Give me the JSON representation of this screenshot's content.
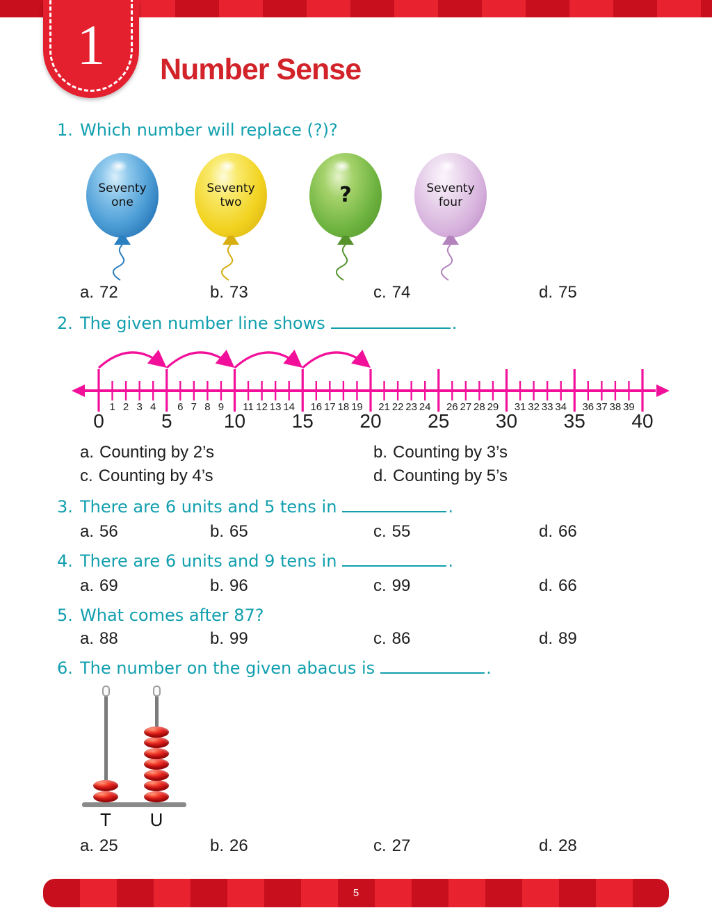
{
  "page": {
    "number": "5"
  },
  "chapter": {
    "number": "1",
    "title": "Number Sense"
  },
  "colors": {
    "stripe_dark": "#c80f1d",
    "stripe_bright": "#e8222e",
    "badge_red": "#e5202e",
    "title_red": "#d2232a",
    "question_teal": "#119fae",
    "number_line_pink": "#f2109b",
    "option_text": "#1d1d1d",
    "bead_red": "#e01f1f"
  },
  "questions": [
    {
      "number": "1.",
      "text": "Which number will replace (?)?",
      "blank_width": 0,
      "suffix": "",
      "options": [
        {
          "letter": "a.",
          "text": "72"
        },
        {
          "letter": "b.",
          "text": "73"
        },
        {
          "letter": "c.",
          "text": "74"
        },
        {
          "letter": "d.",
          "text": "75"
        }
      ]
    },
    {
      "number": "2.",
      "text": "The given number line shows",
      "blank_width": 172,
      "suffix": ".",
      "options": [
        {
          "letter": "a.",
          "text": "Counting by 2’s"
        },
        {
          "letter": "b.",
          "text": "Counting by 3’s"
        },
        {
          "letter": "c.",
          "text": "Counting by 4’s"
        },
        {
          "letter": "d.",
          "text": "Counting by 5’s"
        }
      ]
    },
    {
      "number": "3.",
      "text": "There are 6 units and 5 tens in",
      "blank_width": 150,
      "suffix": ".",
      "options": [
        {
          "letter": "a.",
          "text": "56"
        },
        {
          "letter": "b.",
          "text": "65"
        },
        {
          "letter": "c.",
          "text": "55"
        },
        {
          "letter": "d.",
          "text": "66"
        }
      ]
    },
    {
      "number": "4.",
      "text": "There are 6 units and 9 tens in",
      "blank_width": 150,
      "suffix": ".",
      "options": [
        {
          "letter": "a.",
          "text": "69"
        },
        {
          "letter": "b.",
          "text": "96"
        },
        {
          "letter": "c.",
          "text": "99"
        },
        {
          "letter": "d.",
          "text": "66"
        }
      ]
    },
    {
      "number": "5.",
      "text": "What comes after 87?",
      "blank_width": 0,
      "suffix": "",
      "options": [
        {
          "letter": "a.",
          "text": "88"
        },
        {
          "letter": "b.",
          "text": "99"
        },
        {
          "letter": "c.",
          "text": "86"
        },
        {
          "letter": "d.",
          "text": "89"
        }
      ]
    },
    {
      "number": "6.",
      "text": "The number on the given abacus is",
      "blank_width": 150,
      "suffix": ".",
      "options": [
        {
          "letter": "a.",
          "text": "25"
        },
        {
          "letter": "b.",
          "text": "26"
        },
        {
          "letter": "c.",
          "text": "27"
        },
        {
          "letter": "d.",
          "text": "28"
        }
      ]
    }
  ],
  "balloons": [
    {
      "text": "Seventy one",
      "color": "blue"
    },
    {
      "text": "Seventy two",
      "color": "yellow"
    },
    {
      "text": "?",
      "color": "green"
    },
    {
      "text": "Seventy four",
      "color": "purple"
    }
  ],
  "number_line": {
    "min": 0,
    "max": 40,
    "step": 1,
    "major_step": 5,
    "arcs": [
      [
        0,
        5
      ],
      [
        5,
        10
      ],
      [
        10,
        15
      ],
      [
        15,
        20
      ]
    ],
    "color": "#f2109b"
  },
  "abacus": {
    "columns": [
      {
        "label": "T",
        "beads": 2
      },
      {
        "label": "U",
        "beads": 7
      }
    ]
  }
}
